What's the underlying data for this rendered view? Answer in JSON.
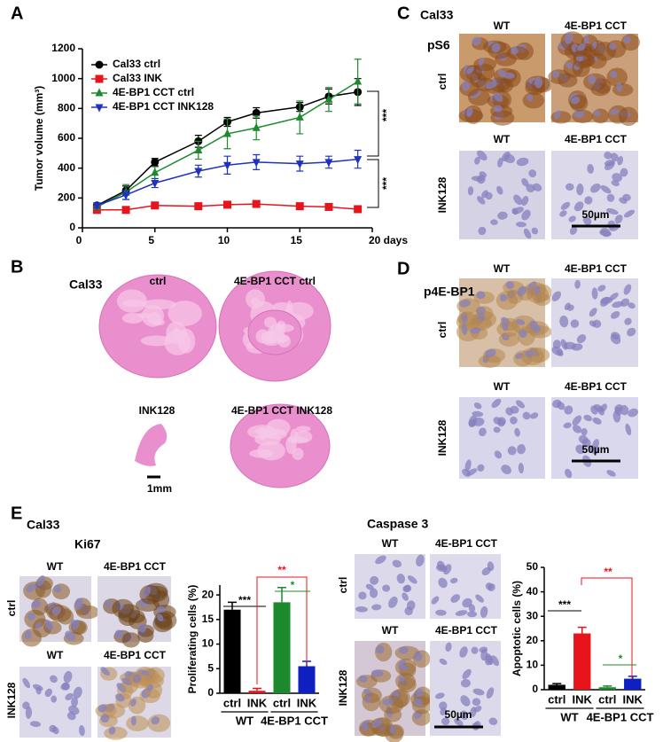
{
  "panel_labels": [
    "A",
    "B",
    "C",
    "D",
    "E"
  ],
  "chart_data": [
    {
      "type": "line",
      "y_label": "Tumor volume (mm³)",
      "x": [
        1,
        3,
        5,
        8,
        10,
        12,
        15,
        17,
        19
      ],
      "xlim": [
        0,
        20
      ],
      "xticks": [
        0,
        5,
        10,
        15,
        {
          "value": 20,
          "label": "20 days"
        }
      ],
      "ylim": [
        0,
        1200
      ],
      "yticks": [
        0,
        200,
        400,
        600,
        800,
        1000,
        1200
      ],
      "legend": "upper left",
      "series": [
        {
          "name": "Cal33 ctrl",
          "color": "#000000",
          "marker": "circle",
          "values": [
            150,
            250,
            440,
            580,
            710,
            770,
            810,
            880,
            910
          ],
          "errors": [
            10,
            30,
            25,
            40,
            30,
            35,
            30,
            50,
            90
          ]
        },
        {
          "name": "Cal33 INK",
          "color": "#e8141c",
          "marker": "square",
          "values": [
            120,
            120,
            150,
            145,
            155,
            160,
            145,
            140,
            125
          ],
          "errors": [
            10,
            8,
            10,
            10,
            10,
            20,
            10,
            10,
            10
          ]
        },
        {
          "name": "4E-BP1 CCT ctrl",
          "color": "#1c8a2c",
          "marker": "triangle",
          "values": [
            140,
            240,
            370,
            520,
            630,
            670,
            740,
            860,
            980
          ],
          "errors": [
            10,
            50,
            40,
            60,
            100,
            80,
            110,
            80,
            150
          ]
        },
        {
          "name": "4E-BP1 CCT INK128",
          "color": "#2030c0",
          "marker": "triangle-down",
          "values": [
            150,
            220,
            300,
            380,
            420,
            440,
            430,
            440,
            460
          ],
          "errors": [
            15,
            30,
            30,
            40,
            60,
            50,
            50,
            40,
            60
          ]
        }
      ],
      "annotations": [
        "***",
        "***"
      ]
    },
    {
      "type": "bar",
      "y_label": "Proliferating cells (%)",
      "categories": [
        "ctrl",
        "INK",
        "ctrl",
        "INK"
      ],
      "groups": [
        "WT",
        "4E-BP1 CCT"
      ],
      "values": [
        17,
        0.5,
        18.5,
        5.5
      ],
      "errors": [
        1.5,
        0.5,
        3,
        1
      ],
      "colors": [
        "#000000",
        "#e8141c",
        "#1c8a2c",
        "#1020c0"
      ],
      "ylim": [
        0,
        22
      ],
      "yticks": [
        0,
        5,
        10,
        15,
        20
      ],
      "annotations": [
        "***",
        "**",
        "*"
      ],
      "annotation_colors": [
        "#000000",
        "#e8141c",
        "#1c8a2c"
      ]
    },
    {
      "type": "bar",
      "y_label": "Apoptotic cells (%)",
      "categories": [
        "ctrl",
        "INK",
        "ctrl",
        "INK"
      ],
      "groups": [
        "WT",
        "4E-BP1 CCT"
      ],
      "values": [
        2,
        23,
        1,
        4.5
      ],
      "errors": [
        0.5,
        2.5,
        0.5,
        1
      ],
      "colors": [
        "#000000",
        "#e8141c",
        "#1c8a2c",
        "#1020c0"
      ],
      "ylim": [
        0,
        50
      ],
      "yticks": [
        0,
        10,
        20,
        30,
        40,
        50
      ],
      "annotations": [
        "***",
        "**",
        "*"
      ],
      "annotation_colors": [
        "#000000",
        "#e8141c",
        "#1c8a2c"
      ]
    }
  ],
  "panel_b": {
    "cell_line": "Cal33",
    "sections": [
      "ctrl",
      "4E-BP1 CCT ctrl",
      "INK128",
      "4E-BP1 CCT INK128"
    ],
    "scale_bar": "1mm"
  },
  "panel_c": {
    "cell_line": "Cal33",
    "stain": "pS6",
    "blocks": [
      {
        "columns": [
          "WT",
          "4E-BP1 CCT"
        ],
        "row": "ctrl"
      },
      {
        "columns": [
          "WT",
          "4E-BP1 CCT"
        ],
        "row": "INK128"
      }
    ],
    "scale_bar": "50µm"
  },
  "panel_d": {
    "stain": "p4E-BP1",
    "blocks": [
      {
        "columns": [
          "WT",
          "4E-BP1 CCT"
        ],
        "row": "ctrl"
      },
      {
        "columns": [
          "WT",
          "4E-BP1 CCT"
        ],
        "row": "INK128"
      }
    ],
    "scale_bar": "50µm"
  },
  "panel_e": {
    "cell_line": "Cal33",
    "stains": [
      {
        "name": "Ki67",
        "blocks": [
          {
            "columns": [
              "WT",
              "4E-BP1 CCT"
            ],
            "row": "ctrl"
          },
          {
            "columns": [
              "WT",
              "4E-BP1 CCT"
            ],
            "row": "INK128"
          }
        ]
      },
      {
        "name": "Caspase 3",
        "blocks": [
          {
            "columns": [
              "WT",
              "4E-BP1 CCT"
            ],
            "row": "ctrl"
          },
          {
            "columns": [
              "WT",
              "4E-BP1 CCT"
            ],
            "row": "INK128"
          }
        ],
        "scale_bar": "50µm"
      }
    ]
  }
}
